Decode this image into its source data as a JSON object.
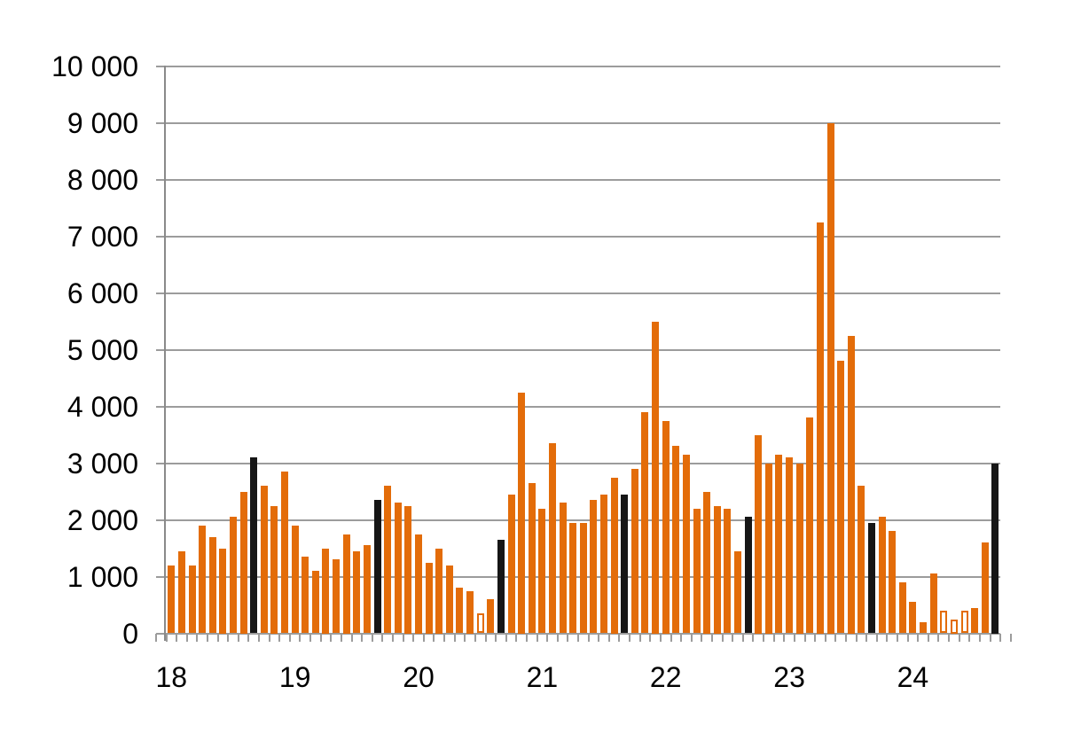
{
  "colors": {
    "bar_orange": "#e36c09",
    "bar_black": "#161616",
    "bar_outline_border": "#e36c09",
    "bar_outline_fill": "#ffffff",
    "gridline": "#9c9c9c",
    "axis": "#8a8a8a",
    "text": "#000000",
    "background": "#ffffff"
  },
  "chart_data": {
    "type": "bar",
    "title": "",
    "xlabel": "",
    "ylabel": "",
    "grid": "horizontal",
    "legend": "none",
    "y_axis": {
      "min": 0,
      "max": 10000,
      "step": 1000,
      "values": [
        0,
        1000,
        2000,
        3000,
        4000,
        5000,
        6000,
        7000,
        8000,
        9000,
        10000
      ],
      "tick_labels": [
        "0",
        "1 000",
        "2 000",
        "3 000",
        "4 000",
        "5 000",
        "6 000",
        "7 000",
        "8 000",
        "9 000",
        "10 000"
      ]
    },
    "x_axis": {
      "labels": [
        "18",
        "19",
        "20",
        "21",
        "22",
        "23",
        "24"
      ],
      "label_alignment": "under January bar of each year",
      "bars_per_year": 12,
      "minor_ticks": "every month slot"
    },
    "highlight_note": "black bars are the September value of each year; outline bars are hollow (white fill, orange border)",
    "bars": [
      {
        "month": "2018-01",
        "value": 1200,
        "style": "solid"
      },
      {
        "month": "2018-02",
        "value": 1450,
        "style": "solid"
      },
      {
        "month": "2018-03",
        "value": 1200,
        "style": "solid"
      },
      {
        "month": "2018-04",
        "value": 1900,
        "style": "solid"
      },
      {
        "month": "2018-05",
        "value": 1700,
        "style": "solid"
      },
      {
        "month": "2018-06",
        "value": 1500,
        "style": "solid"
      },
      {
        "month": "2018-07",
        "value": 2050,
        "style": "solid"
      },
      {
        "month": "2018-08",
        "value": 2500,
        "style": "solid"
      },
      {
        "month": "2018-09",
        "value": 3100,
        "style": "black"
      },
      {
        "month": "2018-10",
        "value": 2600,
        "style": "solid"
      },
      {
        "month": "2018-11",
        "value": 2250,
        "style": "solid"
      },
      {
        "month": "2018-12",
        "value": 2850,
        "style": "solid"
      },
      {
        "month": "2019-01",
        "value": 1900,
        "style": "solid"
      },
      {
        "month": "2019-02",
        "value": 1350,
        "style": "solid"
      },
      {
        "month": "2019-03",
        "value": 1100,
        "style": "solid"
      },
      {
        "month": "2019-04",
        "value": 1500,
        "style": "solid"
      },
      {
        "month": "2019-05",
        "value": 1300,
        "style": "solid"
      },
      {
        "month": "2019-06",
        "value": 1750,
        "style": "solid"
      },
      {
        "month": "2019-07",
        "value": 1450,
        "style": "solid"
      },
      {
        "month": "2019-08",
        "value": 1550,
        "style": "solid"
      },
      {
        "month": "2019-09",
        "value": 2350,
        "style": "black"
      },
      {
        "month": "2019-10",
        "value": 2600,
        "style": "solid"
      },
      {
        "month": "2019-11",
        "value": 2300,
        "style": "solid"
      },
      {
        "month": "2019-12",
        "value": 2250,
        "style": "solid"
      },
      {
        "month": "2020-01",
        "value": 1750,
        "style": "solid"
      },
      {
        "month": "2020-02",
        "value": 1250,
        "style": "solid"
      },
      {
        "month": "2020-03",
        "value": 1500,
        "style": "solid"
      },
      {
        "month": "2020-04",
        "value": 1200,
        "style": "solid"
      },
      {
        "month": "2020-05",
        "value": 800,
        "style": "solid"
      },
      {
        "month": "2020-06",
        "value": 750,
        "style": "solid"
      },
      {
        "month": "2020-07",
        "value": 350,
        "style": "outline"
      },
      {
        "month": "2020-08",
        "value": 600,
        "style": "solid"
      },
      {
        "month": "2020-09",
        "value": 1650,
        "style": "black"
      },
      {
        "month": "2020-10",
        "value": 2450,
        "style": "solid"
      },
      {
        "month": "2020-11",
        "value": 4250,
        "style": "solid"
      },
      {
        "month": "2020-12",
        "value": 2650,
        "style": "solid"
      },
      {
        "month": "2021-01",
        "value": 2200,
        "style": "solid"
      },
      {
        "month": "2021-02",
        "value": 3350,
        "style": "solid"
      },
      {
        "month": "2021-03",
        "value": 2300,
        "style": "solid"
      },
      {
        "month": "2021-04",
        "value": 1950,
        "style": "solid"
      },
      {
        "month": "2021-05",
        "value": 1950,
        "style": "solid"
      },
      {
        "month": "2021-06",
        "value": 2350,
        "style": "solid"
      },
      {
        "month": "2021-07",
        "value": 2450,
        "style": "solid"
      },
      {
        "month": "2021-08",
        "value": 2750,
        "style": "solid"
      },
      {
        "month": "2021-09",
        "value": 2450,
        "style": "black"
      },
      {
        "month": "2021-10",
        "value": 2900,
        "style": "solid"
      },
      {
        "month": "2021-11",
        "value": 3900,
        "style": "solid"
      },
      {
        "month": "2021-12",
        "value": 5500,
        "style": "solid"
      },
      {
        "month": "2022-01",
        "value": 3750,
        "style": "solid"
      },
      {
        "month": "2022-02",
        "value": 3300,
        "style": "solid"
      },
      {
        "month": "2022-03",
        "value": 3150,
        "style": "solid"
      },
      {
        "month": "2022-04",
        "value": 2200,
        "style": "solid"
      },
      {
        "month": "2022-05",
        "value": 2500,
        "style": "solid"
      },
      {
        "month": "2022-06",
        "value": 2250,
        "style": "solid"
      },
      {
        "month": "2022-07",
        "value": 2200,
        "style": "solid"
      },
      {
        "month": "2022-08",
        "value": 1450,
        "style": "solid"
      },
      {
        "month": "2022-09",
        "value": 2050,
        "style": "black"
      },
      {
        "month": "2022-10",
        "value": 3500,
        "style": "solid"
      },
      {
        "month": "2022-11",
        "value": 3000,
        "style": "solid"
      },
      {
        "month": "2022-12",
        "value": 3150,
        "style": "solid"
      },
      {
        "month": "2023-01",
        "value": 3100,
        "style": "solid"
      },
      {
        "month": "2023-02",
        "value": 3000,
        "style": "solid"
      },
      {
        "month": "2023-03",
        "value": 3800,
        "style": "solid"
      },
      {
        "month": "2023-04",
        "value": 7250,
        "style": "solid"
      },
      {
        "month": "2023-05",
        "value": 9000,
        "style": "solid"
      },
      {
        "month": "2023-06",
        "value": 4800,
        "style": "solid"
      },
      {
        "month": "2023-07",
        "value": 5250,
        "style": "solid"
      },
      {
        "month": "2023-08",
        "value": 2600,
        "style": "solid"
      },
      {
        "month": "2023-09",
        "value": 1950,
        "style": "black"
      },
      {
        "month": "2023-10",
        "value": 2050,
        "style": "solid"
      },
      {
        "month": "2023-11",
        "value": 1800,
        "style": "solid"
      },
      {
        "month": "2023-12",
        "value": 900,
        "style": "solid"
      },
      {
        "month": "2024-01",
        "value": 550,
        "style": "solid"
      },
      {
        "month": "2024-02",
        "value": 200,
        "style": "solid"
      },
      {
        "month": "2024-03",
        "value": 1050,
        "style": "solid"
      },
      {
        "month": "2024-04",
        "value": 400,
        "style": "outline"
      },
      {
        "month": "2024-05",
        "value": 250,
        "style": "outline"
      },
      {
        "month": "2024-06",
        "value": 400,
        "style": "outline"
      },
      {
        "month": "2024-07",
        "value": 450,
        "style": "solid"
      },
      {
        "month": "2024-08",
        "value": 1600,
        "style": "solid"
      },
      {
        "month": "2024-09",
        "value": 3000,
        "style": "black"
      }
    ]
  }
}
